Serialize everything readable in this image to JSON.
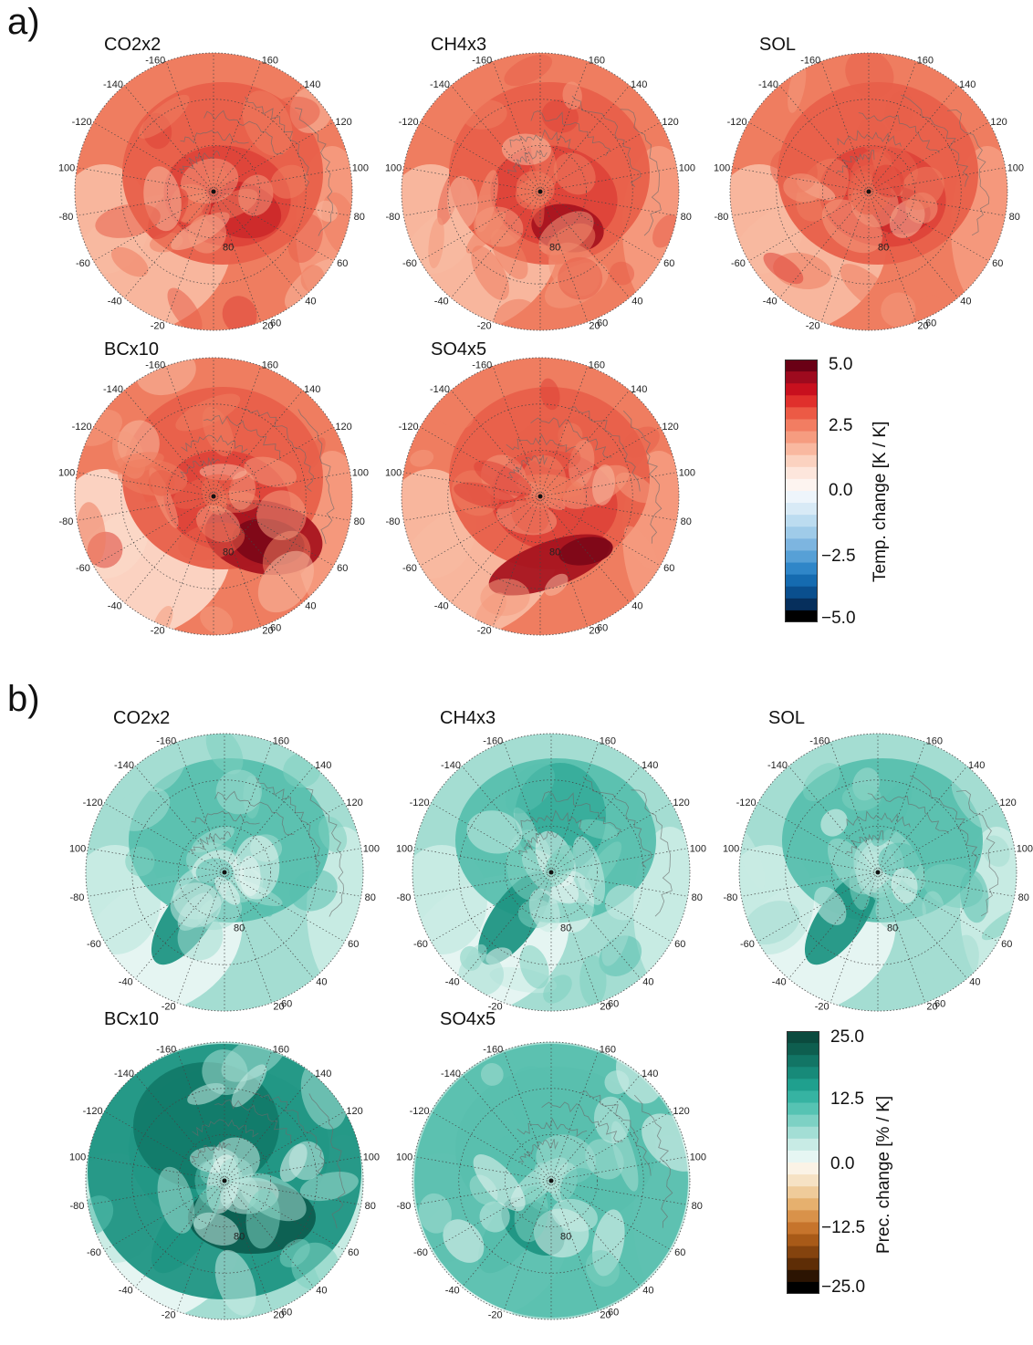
{
  "panels": [
    {
      "letter": "a)",
      "maps": [
        {
          "title": "CO2x2"
        },
        {
          "title": "CH4x3"
        },
        {
          "title": "SOL"
        },
        {
          "title": "BCx10"
        },
        {
          "title": "SO4x5"
        }
      ],
      "colorbar": {
        "title": "Temp. change [K / K]",
        "ticks": [
          "5.0",
          "2.5",
          "0.0",
          "−2.5",
          "−5.0"
        ],
        "colors": [
          "#6a0015",
          "#9e0a1e",
          "#c8101e",
          "#e0302c",
          "#ec5a45",
          "#f27d62",
          "#f69c80",
          "#f9b8a0",
          "#fbd2c0",
          "#fde6dc",
          "#fdf4f0",
          "#eef5fb",
          "#d8eaf6",
          "#bcdcf0",
          "#9fcbe9",
          "#7db5e0",
          "#57a0d6",
          "#2f86c8",
          "#156bb0",
          "#0a4f8e",
          "#062f5c",
          "#000000"
        ],
        "colormap_note": ""
      },
      "longitude_labels": [
        "-160",
        "160",
        "-140",
        "140",
        "-120",
        "120",
        "-100",
        "100",
        "-80",
        "80",
        "-60",
        "60",
        "-40",
        "40",
        "-20",
        "20"
      ],
      "latitude_labels": [
        "80",
        "60"
      ]
    },
    {
      "letter": "b)",
      "maps": [
        {
          "title": "CO2x2"
        },
        {
          "title": "CH4x3"
        },
        {
          "title": "SOL"
        },
        {
          "title": "BCx10"
        },
        {
          "title": "SO4x5"
        }
      ],
      "colorbar": {
        "title": "Prec. change [% / K]",
        "ticks": [
          "25.0",
          "12.5",
          "0.0",
          "−12.5",
          "−25.0"
        ],
        "colors": [
          "#0b4a3e",
          "#0e5e4f",
          "#127565",
          "#178a79",
          "#1fa08e",
          "#36b3a2",
          "#56c3b3",
          "#7dd1c4",
          "#a3ded5",
          "#c8ebe5",
          "#e6f6f3",
          "#fbf3e6",
          "#f6e2c4",
          "#efcb9a",
          "#e6b06e",
          "#d9924a",
          "#c6742c",
          "#a85a18",
          "#84430e",
          "#5e2d06",
          "#2c1402",
          "#000000"
        ],
        "colormap_note": ""
      }
    }
  ]
}
